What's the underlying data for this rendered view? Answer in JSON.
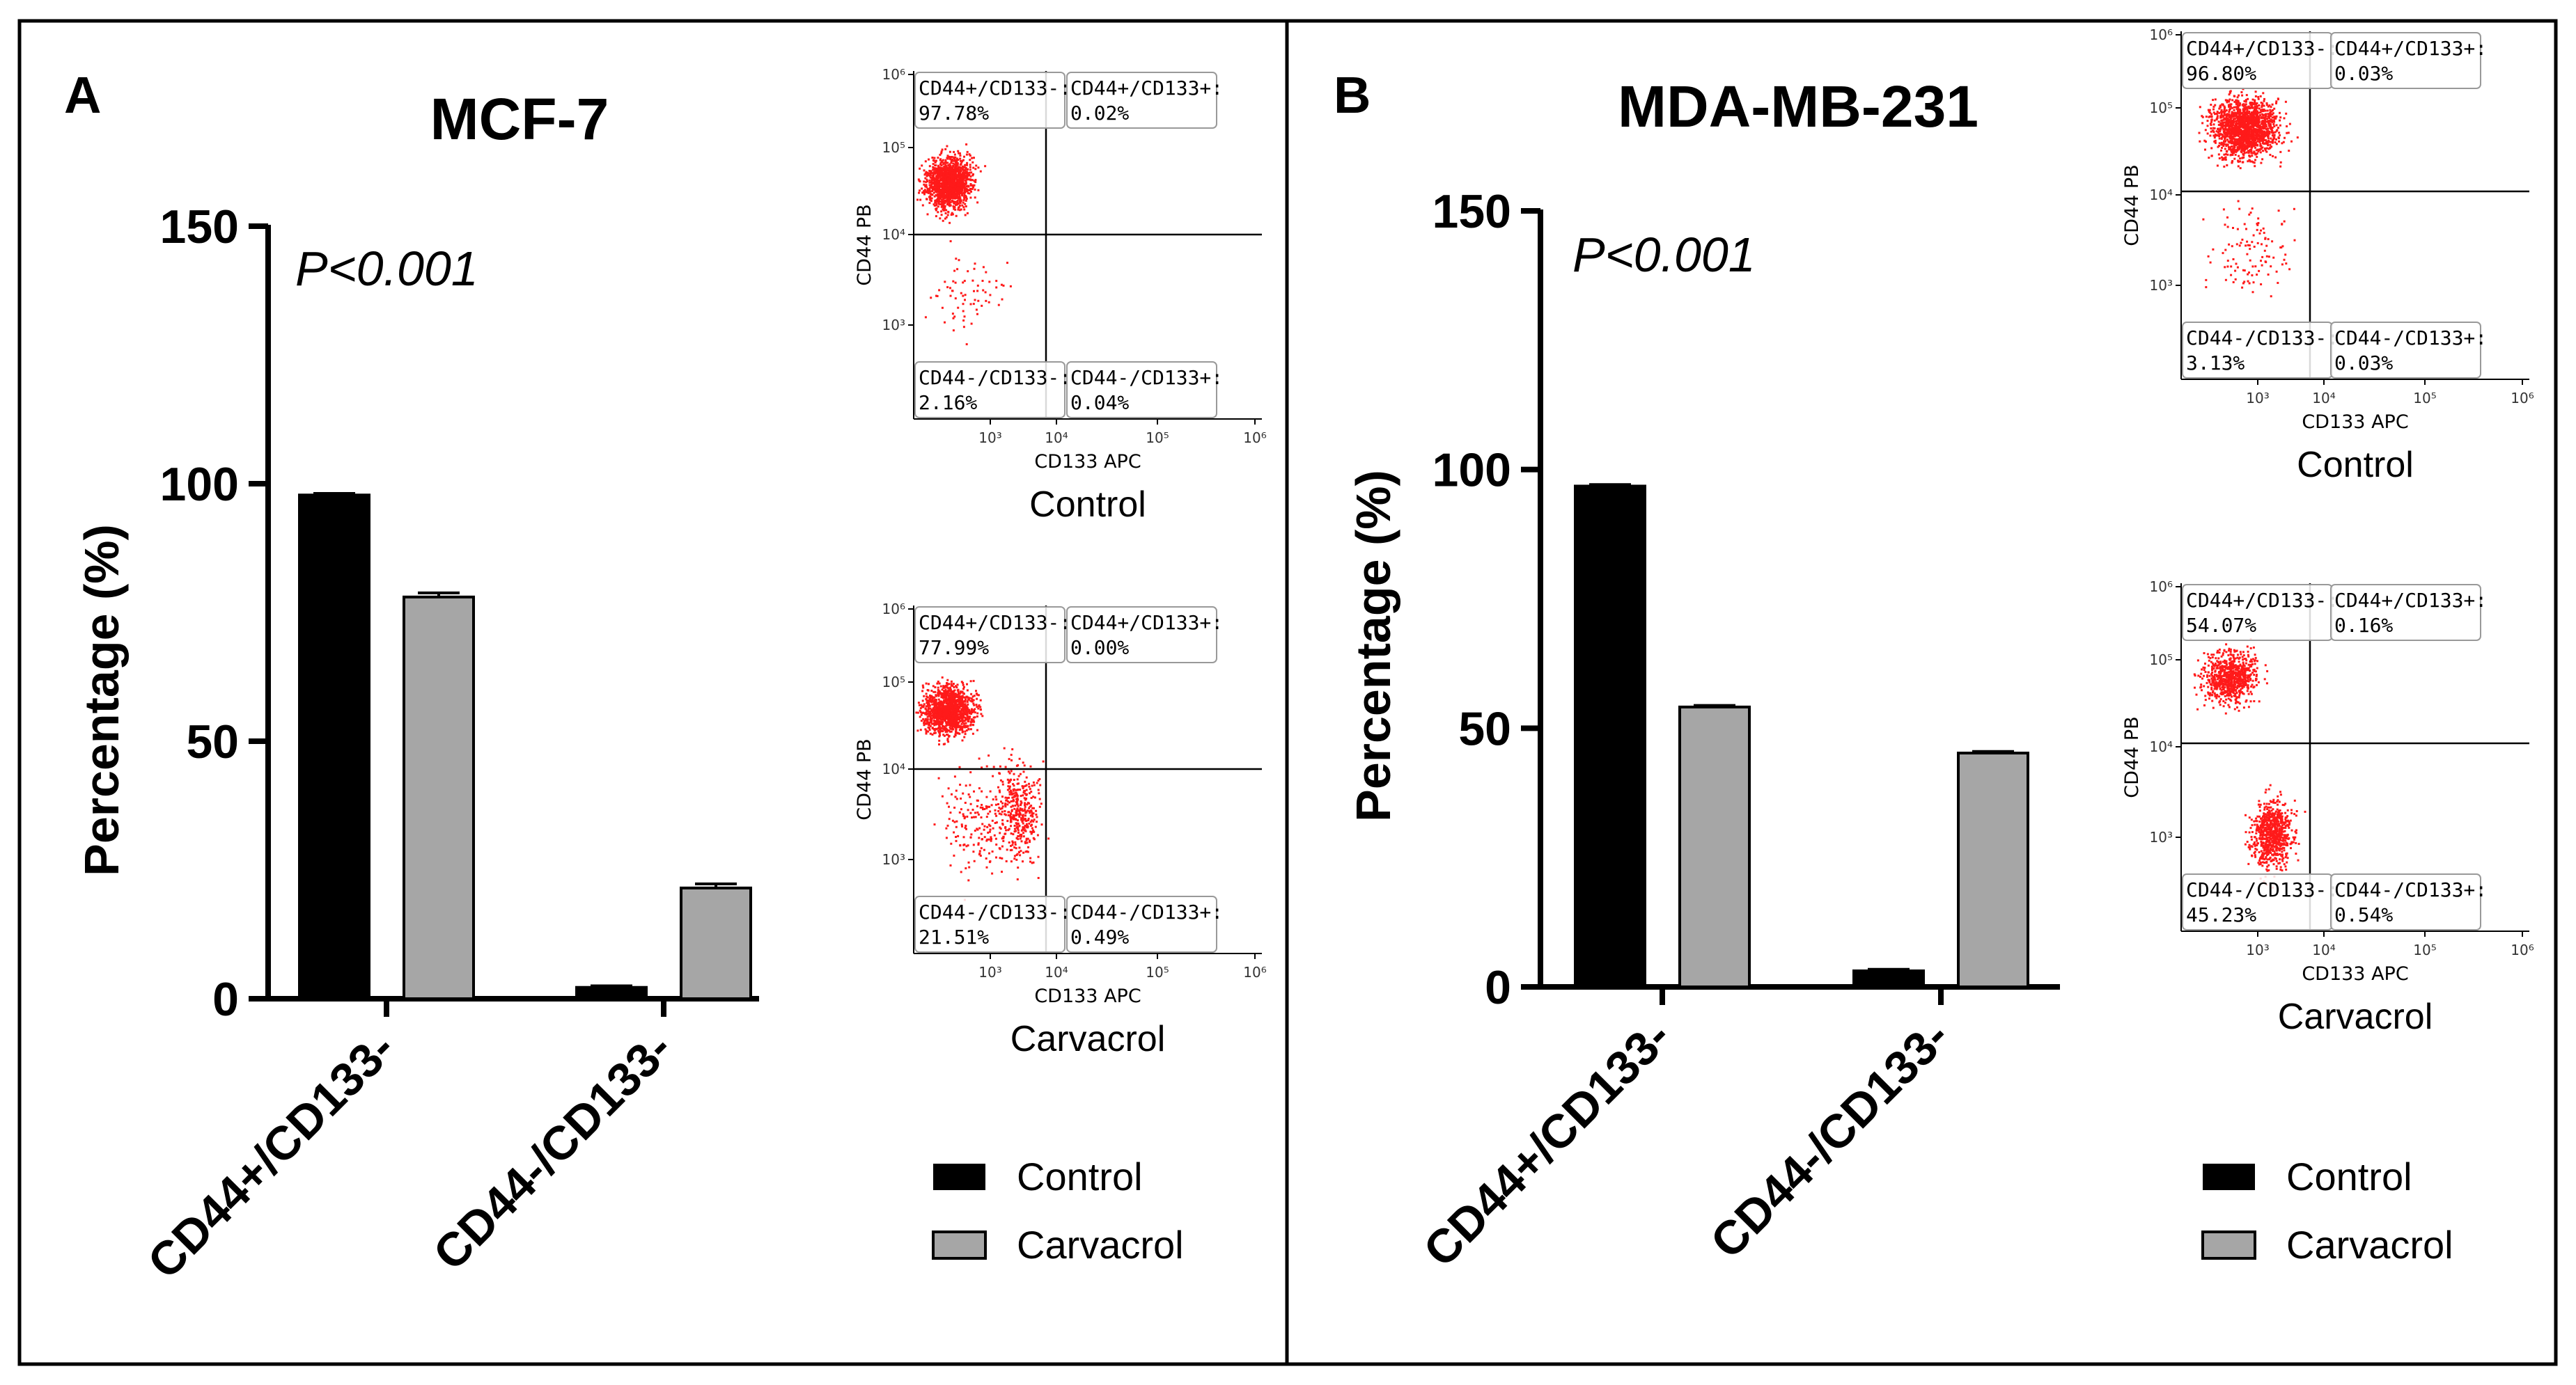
{
  "panels": [
    {
      "panel_letter": "A",
      "title": "MCF-7",
      "pvalue": "P<0.001",
      "ylabel": "Percentage (%)",
      "legend": [
        "Control",
        "Carvacrol"
      ],
      "flow_plots": [
        {
          "caption": "Control",
          "xlabel": "CD133 APC",
          "ylabel": "CD44 PB",
          "x_ticks": [
            "10³",
            "10⁴",
            "10⁵",
            "10⁶"
          ],
          "y_ticks": [
            "10³",
            "10⁴",
            "10⁵",
            "10⁶"
          ],
          "quadrants": {
            "tl": {
              "label": "CD44+/CD133-:",
              "value": "97.78%"
            },
            "tr": {
              "label": "CD44+/CD133+:",
              "value": "0.02%"
            },
            "bl": {
              "label": "CD44-/CD133-:",
              "value": "2.16%"
            },
            "br": {
              "label": "CD44-/CD133+:",
              "value": "0.04%"
            }
          }
        },
        {
          "caption": "Carvacrol",
          "xlabel": "CD133 APC",
          "ylabel": "CD44 PB",
          "x_ticks": [
            "10³",
            "10⁴",
            "10⁵",
            "10⁶"
          ],
          "y_ticks": [
            "10³",
            "10⁴",
            "10⁵",
            "10⁶"
          ],
          "quadrants": {
            "tl": {
              "label": "CD44+/CD133-:",
              "value": "77.99%"
            },
            "tr": {
              "label": "CD44+/CD133+:",
              "value": "0.00%"
            },
            "bl": {
              "label": "CD44-/CD133-:",
              "value": "21.51%"
            },
            "br": {
              "label": "CD44-/CD133+:",
              "value": "0.49%"
            }
          }
        }
      ]
    },
    {
      "panel_letter": "B",
      "title": "MDA-MB-231",
      "pvalue": "P<0.001",
      "ylabel": "Percentage (%)",
      "legend": [
        "Control",
        "Carvacrol"
      ],
      "flow_plots": [
        {
          "caption": "Control",
          "xlabel": "CD133 APC",
          "ylabel": "CD44 PB",
          "x_ticks": [
            "10³",
            "10⁴",
            "10⁵",
            "10⁶"
          ],
          "y_ticks": [
            "10³",
            "10⁴",
            "10⁵",
            "10⁶"
          ],
          "quadrants": {
            "tl": {
              "label": "CD44+/CD133-:",
              "value": "96.80%"
            },
            "tr": {
              "label": "CD44+/CD133+:",
              "value": "0.03%"
            },
            "bl": {
              "label": "CD44-/CD133-:",
              "value": "3.13%"
            },
            "br": {
              "label": "CD44-/CD133+:",
              "value": "0.03%"
            }
          }
        },
        {
          "caption": "Carvacrol",
          "xlabel": "CD133 APC",
          "ylabel": "CD44 PB",
          "x_ticks": [
            "10³",
            "10⁴",
            "10⁵",
            "10⁶"
          ],
          "y_ticks": [
            "10³",
            "10⁴",
            "10⁵",
            "10⁶"
          ],
          "quadrants": {
            "tl": {
              "label": "CD44+/CD133-:",
              "value": "54.07%"
            },
            "tr": {
              "label": "CD44+/CD133+:",
              "value": "0.16%"
            },
            "bl": {
              "label": "CD44-/CD133-:",
              "value": "45.23%"
            },
            "br": {
              "label": "CD44-/CD133+:",
              "value": "0.54%"
            }
          }
        }
      ]
    }
  ],
  "colors": {
    "control": "#000000",
    "carvacrol": "#a6a6a6",
    "dots": "#ff1a1a",
    "border": "#000000"
  },
  "chart_data": [
    {
      "type": "bar",
      "title": "MCF-7",
      "ylabel": "Percentage (%)",
      "ylim": [
        0,
        150
      ],
      "yticks": [
        0,
        50,
        100,
        150
      ],
      "categories": [
        "CD44+/CD133-",
        "CD44-/CD133-"
      ],
      "series": [
        {
          "name": "Control",
          "values": [
            97.8,
            2.2
          ],
          "errors": [
            0.3,
            0.3
          ]
        },
        {
          "name": "Carvacrol",
          "values": [
            78.0,
            21.5
          ],
          "errors": [
            0.8,
            0.8
          ]
        }
      ],
      "annotation": "P<0.001"
    },
    {
      "type": "bar",
      "title": "MDA-MB-231",
      "ylabel": "Percentage (%)",
      "ylim": [
        0,
        150
      ],
      "yticks": [
        0,
        50,
        100,
        150
      ],
      "categories": [
        "CD44+/CD133-",
        "CD44-/CD133-"
      ],
      "series": [
        {
          "name": "Control",
          "values": [
            96.8,
            3.1
          ],
          "errors": [
            0.3,
            0.3
          ]
        },
        {
          "name": "Carvacrol",
          "values": [
            54.1,
            45.2
          ],
          "errors": [
            0.3,
            0.3
          ]
        }
      ],
      "annotation": "P<0.001"
    }
  ]
}
